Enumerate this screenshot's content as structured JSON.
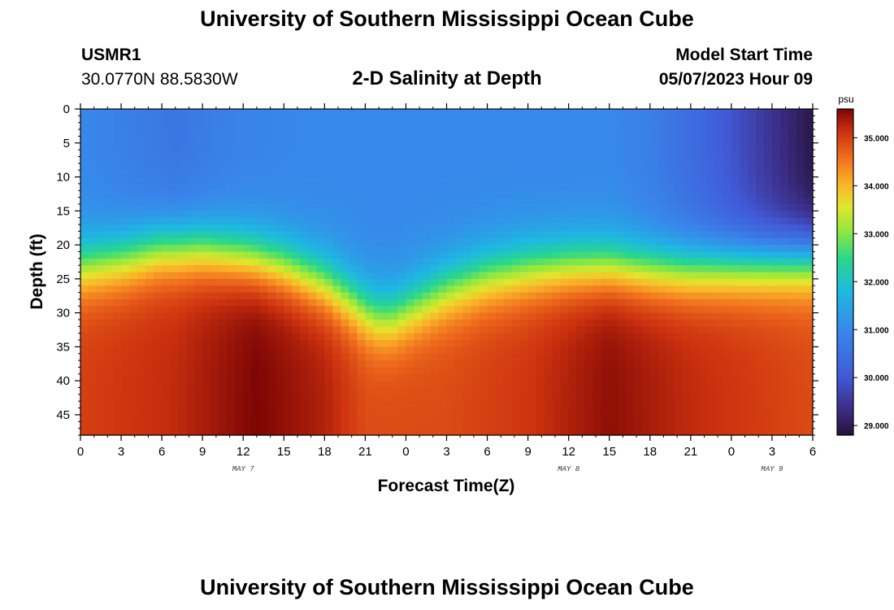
{
  "page": {
    "title_top": "University of Southern Mississippi Ocean Cube",
    "title_bottom": "University of Southern Mississippi Ocean Cube",
    "station_id": "USMR1",
    "station_coords": "30.0770N  88.5830W",
    "plot_title": "2-D Salinity at Depth",
    "model_start_label": "Model Start Time",
    "model_start_value": "05/07/2023 Hour 09"
  },
  "chart_data": {
    "type": "heatmap",
    "title": "2-D Salinity at Depth",
    "xlabel": "Forecast Time(Z)",
    "ylabel": "Depth (ft)",
    "x_range_hours": [
      0,
      54
    ],
    "x_tick_labels": [
      "0",
      "3",
      "6",
      "9",
      "12",
      "15",
      "18",
      "21",
      "0",
      "3",
      "6",
      "9",
      "12",
      "15",
      "18",
      "21",
      "0",
      "3",
      "6"
    ],
    "day_labels": [
      {
        "text": "MAY 7",
        "at_hour": 12
      },
      {
        "text": "MAY 8",
        "at_hour": 36
      },
      {
        "text": "MAY 9",
        "at_hour": 51
      }
    ],
    "y_range_ft": [
      0,
      48
    ],
    "y_tick_labels": [
      "0",
      "5",
      "10",
      "15",
      "20",
      "25",
      "30",
      "35",
      "40",
      "45"
    ],
    "colorbar": {
      "unit": "psu",
      "range": [
        28.8,
        35.6
      ],
      "tick_labels": [
        "35.000",
        "34.000",
        "33.000",
        "32.000",
        "31.000",
        "30.000",
        "29.000"
      ],
      "tick_values": [
        35,
        34,
        33,
        32,
        31,
        30,
        29
      ]
    },
    "interface_depth_ft": [
      {
        "hour": 0,
        "depth": 23
      },
      {
        "hour": 3,
        "depth": 22
      },
      {
        "hour": 6,
        "depth": 20.5
      },
      {
        "hour": 9,
        "depth": 20.5
      },
      {
        "hour": 12,
        "depth": 21.5
      },
      {
        "hour": 15,
        "depth": 23
      },
      {
        "hour": 18,
        "depth": 25.5
      },
      {
        "hour": 20,
        "depth": 28
      },
      {
        "hour": 21,
        "depth": 29.5
      },
      {
        "hour": 22,
        "depth": 30.5
      },
      {
        "hour": 23,
        "depth": 30.5
      },
      {
        "hour": 24,
        "depth": 29.5
      },
      {
        "hour": 27,
        "depth": 26.5
      },
      {
        "hour": 30,
        "depth": 24.5
      },
      {
        "hour": 33,
        "depth": 23.5
      },
      {
        "hour": 36,
        "depth": 23
      },
      {
        "hour": 39,
        "depth": 23
      },
      {
        "hour": 42,
        "depth": 23.5
      },
      {
        "hour": 45,
        "depth": 23.5
      },
      {
        "hour": 48,
        "depth": 23
      },
      {
        "hour": 51,
        "depth": 22.5
      },
      {
        "hour": 54,
        "depth": 22
      }
    ],
    "surface_salinity_psu": [
      {
        "hour": 0,
        "value": 31.0
      },
      {
        "hour": 7,
        "value": 30.6
      },
      {
        "hour": 12,
        "value": 30.9
      },
      {
        "hour": 18,
        "value": 31.0
      },
      {
        "hour": 30,
        "value": 31.0
      },
      {
        "hour": 39,
        "value": 31.0
      },
      {
        "hour": 42,
        "value": 30.8
      },
      {
        "hour": 46,
        "value": 30.3
      },
      {
        "hour": 50,
        "value": 29.6
      },
      {
        "hour": 54,
        "value": 28.9
      }
    ],
    "bottom_salinity_psu": [
      {
        "hour": 0,
        "value": 35.0
      },
      {
        "hour": 7,
        "value": 35.2
      },
      {
        "hour": 13,
        "value": 35.6
      },
      {
        "hour": 18,
        "value": 35.3
      },
      {
        "hour": 21,
        "value": 34.9
      },
      {
        "hour": 27,
        "value": 34.9
      },
      {
        "hour": 33,
        "value": 35.1
      },
      {
        "hour": 39,
        "value": 35.5
      },
      {
        "hour": 45,
        "value": 35.2
      },
      {
        "hour": 54,
        "value": 34.9
      }
    ]
  }
}
